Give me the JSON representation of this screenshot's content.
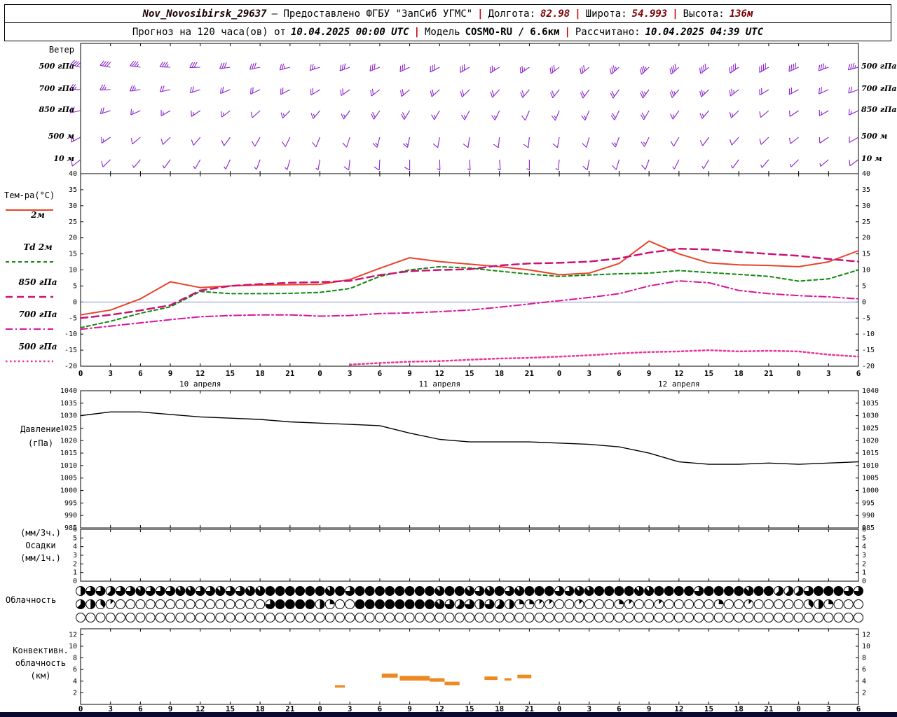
{
  "header": {
    "station": "Nov_Novosibirsk_29637",
    "provider": "— Предоставлено ФГБУ \"ЗапСиб УГМС\"",
    "sep": "|",
    "lon_label": "Долгота:",
    "lon": "82.98",
    "lat_label": "Широта:",
    "lat": "54.993",
    "alt_label": "Высота:",
    "alt": "136м",
    "forecast_label": "Прогноз на 120 часа(ов) от",
    "forecast_time": "10.04.2025 00:00 UTC",
    "model_label": "Модель",
    "model": "COSMO-RU / 6.6км",
    "calc_label": "Рассчитано:",
    "calc_time": "10.04.2025 04:39 UTC"
  },
  "labels": {
    "wind": "Ветер",
    "wind_levels": [
      "500 гПа",
      "700 гПа",
      "850 гПа",
      "500 м",
      "10 м"
    ],
    "temp_title": "Тем-ра(°C)",
    "legend": [
      "2м",
      "Td 2м",
      "850 гПа",
      "700 гПа",
      "500 гПа"
    ],
    "pressure1": "Давление",
    "pressure2": "(гПа)",
    "precip1": "(мм/3ч.)",
    "precip2": "Осадки",
    "precip3": "(мм/1ч.)",
    "cloud": "Облачность",
    "conv1": "Конвективн.",
    "conv2": "облачность",
    "conv3": "(км)"
  },
  "colors": {
    "barb": "#8822cc",
    "separator": "#cc0000",
    "zero_line": "#7788cc",
    "convective": "#ee8822",
    "bottom_bar": "#0a0a30",
    "axis": "#000000"
  },
  "axis": {
    "x_hours": [
      0,
      3,
      6,
      9,
      12,
      15,
      18,
      21,
      24,
      27,
      30,
      33,
      36,
      39,
      42,
      45,
      48,
      51,
      54,
      57,
      60,
      63,
      66,
      69,
      72,
      75,
      78
    ],
    "hour_labels": [
      "0",
      "3",
      "6",
      "9",
      "12",
      "15",
      "18",
      "21",
      "0",
      "3",
      "6",
      "9",
      "12",
      "15",
      "18",
      "21",
      "0",
      "3",
      "6",
      "9",
      "12",
      "15",
      "18",
      "21",
      "0",
      "3",
      "6"
    ],
    "date_labels": [
      {
        "text": "10 апреля",
        "hour": 12
      },
      {
        "text": "11 апреля",
        "hour": 36
      },
      {
        "text": "12 апреля",
        "hour": 60
      }
    ]
  },
  "chart_data": [
    {
      "id": "wind",
      "type": "wind-barbs",
      "title": "Ветер",
      "levels": [
        {
          "name": "500 гПа",
          "dirs": [
            285,
            280,
            278,
            272,
            268,
            262,
            258,
            255,
            252,
            250,
            248,
            245,
            242,
            240,
            238,
            235,
            232,
            230,
            228,
            226,
            228,
            232,
            236,
            240,
            246,
            250,
            255
          ],
          "speeds": [
            20,
            20,
            18,
            18,
            16,
            15,
            15,
            14,
            14,
            15,
            15,
            16,
            16,
            15,
            14,
            14,
            15,
            16,
            18,
            18,
            20,
            21,
            22,
            21,
            20,
            18,
            18
          ]
        },
        {
          "name": "700 гПа",
          "dirs": [
            272,
            268,
            262,
            258,
            252,
            248,
            245,
            242,
            238,
            235,
            232,
            230,
            228,
            225,
            222,
            220,
            218,
            216,
            215,
            216,
            220,
            226,
            232,
            238,
            242,
            246,
            250
          ],
          "speeds": [
            14,
            14,
            13,
            12,
            12,
            11,
            10,
            10,
            10,
            11,
            12,
            12,
            11,
            10,
            10,
            10,
            11,
            12,
            12,
            13,
            14,
            14,
            13,
            12,
            12,
            11,
            10
          ]
        },
        {
          "name": "850 гПа",
          "dirs": [
            258,
            252,
            246,
            240,
            236,
            232,
            228,
            224,
            220,
            216,
            214,
            212,
            210,
            208,
            205,
            203,
            202,
            203,
            206,
            210,
            215,
            220,
            226,
            230,
            236,
            240,
            245
          ],
          "speeds": [
            10,
            10,
            9,
            8,
            8,
            8,
            7,
            8,
            8,
            9,
            10,
            10,
            9,
            8,
            8,
            7,
            8,
            9,
            10,
            10,
            9,
            8,
            8,
            7,
            7,
            8,
            8
          ]
        },
        {
          "name": "500 м",
          "dirs": [
            242,
            236,
            230,
            226,
            220,
            216,
            210,
            206,
            202,
            198,
            195,
            192,
            190,
            188,
            186,
            186,
            190,
            195,
            200,
            206,
            210,
            216,
            222,
            226,
            232,
            236,
            240
          ],
          "speeds": [
            8,
            8,
            7,
            6,
            6,
            6,
            5,
            6,
            6,
            7,
            8,
            8,
            7,
            6,
            6,
            5,
            6,
            7,
            8,
            8,
            7,
            6,
            6,
            5,
            5,
            6,
            6
          ]
        },
        {
          "name": "10 м",
          "dirs": [
            232,
            226,
            220,
            216,
            210,
            205,
            200,
            196,
            190,
            186,
            183,
            180,
            178,
            176,
            175,
            180,
            186,
            190,
            196,
            200,
            206,
            210,
            216,
            220,
            226,
            230,
            234
          ],
          "speeds": [
            5,
            5,
            4,
            4,
            4,
            3,
            3,
            4,
            4,
            5,
            5,
            5,
            4,
            4,
            3,
            3,
            4,
            5,
            5,
            5,
            4,
            4,
            3,
            3,
            4,
            4,
            5
          ]
        }
      ]
    },
    {
      "id": "temperature",
      "type": "line",
      "title": "Тем-ра(°C)",
      "ylim": [
        -20,
        40
      ],
      "ytick_step": 5,
      "zero_line": true,
      "series": [
        {
          "name": "2м",
          "color": "#e8432a",
          "style": "solid",
          "width": 2,
          "values": [
            -4,
            -2.5,
            1,
            6.3,
            4.5,
            5,
            5.3,
            5.4,
            5.5,
            7,
            10.5,
            13.8,
            12.6,
            11.8,
            11,
            10,
            8.5,
            9,
            12,
            19,
            15,
            12.2,
            11.6,
            11.4,
            11,
            12.5,
            16
          ]
        },
        {
          "name": "Td 2м",
          "color": "#118811",
          "style": "dashed",
          "width": 2,
          "values": [
            -8,
            -6,
            -3.5,
            -1.5,
            3.3,
            2.6,
            2.6,
            2.7,
            3,
            4.2,
            8,
            10,
            11,
            10.6,
            9.6,
            8.7,
            8,
            8.4,
            8.8,
            9,
            9.8,
            9.2,
            8.6,
            8,
            6.5,
            7.2,
            10
          ]
        },
        {
          "name": "850 гПа",
          "color": "#cc1177",
          "style": "longdash",
          "width": 2.5,
          "values": [
            -5,
            -4,
            -2.6,
            -1,
            3.6,
            5,
            5.6,
            6,
            6.2,
            6.6,
            8.4,
            9.6,
            10,
            10.2,
            11.4,
            12,
            12.2,
            12.6,
            13.6,
            15.4,
            16.6,
            16.4,
            15.6,
            15,
            14.4,
            13.4,
            12.6
          ]
        },
        {
          "name": "700 гПа",
          "color": "#dd1199",
          "style": "dashdot",
          "width": 2,
          "values": [
            -8.5,
            -7.5,
            -6.5,
            -5.5,
            -4.6,
            -4.2,
            -4,
            -4,
            -4.4,
            -4.2,
            -3.6,
            -3.4,
            -3,
            -2.5,
            -1.6,
            -0.6,
            0.4,
            1.4,
            2.6,
            5,
            6.6,
            6,
            3.6,
            2.6,
            2,
            1.6,
            1
          ]
        },
        {
          "name": "500 гПа",
          "color": "#ee3399",
          "style": "dotted",
          "width": 2.5,
          "values": [
            null,
            null,
            null,
            null,
            null,
            null,
            null,
            null,
            null,
            -19.5,
            -19,
            -18.6,
            -18.4,
            -18,
            -17.6,
            -17.4,
            -17,
            -16.6,
            -16,
            -15.6,
            -15.4,
            -15,
            -15.4,
            -15.2,
            -15.4,
            -16.4,
            -17
          ]
        }
      ]
    },
    {
      "id": "pressure",
      "type": "line",
      "title": "Давление (гПа)",
      "ylim": [
        985,
        1040
      ],
      "ytick_step": 5,
      "series": [
        {
          "name": "Давление",
          "color": "#000000",
          "style": "solid",
          "width": 1.4,
          "values": [
            1030,
            1031.5,
            1031.5,
            1030.5,
            1029.5,
            1029,
            1028.5,
            1027.5,
            1027,
            1026.5,
            1026,
            1023,
            1020.5,
            1019.5,
            1019.5,
            1019.5,
            1019,
            1018.5,
            1017.5,
            1015,
            1011.5,
            1010.5,
            1010.5,
            1011,
            1010.5,
            1011,
            1011.5
          ]
        }
      ]
    },
    {
      "id": "precip",
      "type": "bar",
      "title": "Осадки (мм/3ч., мм/1ч.)",
      "ylim": [
        0,
        6
      ],
      "yticks": [
        0,
        1,
        2,
        3,
        4,
        5,
        6
      ],
      "values": [
        0,
        0,
        0,
        0,
        0,
        0,
        0,
        0,
        0,
        0,
        0,
        0,
        0,
        0,
        0,
        0,
        0,
        0,
        0,
        0,
        0,
        0,
        0,
        0,
        0,
        0,
        0
      ]
    },
    {
      "id": "cloud",
      "type": "cloud-rows",
      "title": "Облачность",
      "okta_max": 8,
      "rows": [
        [
          4,
          6,
          6,
          5,
          6,
          6,
          7,
          6,
          6,
          6,
          7,
          7,
          6,
          6,
          7,
          6,
          6,
          7,
          7,
          8,
          8,
          8,
          8,
          8,
          8,
          7,
          8,
          6,
          8,
          8,
          8,
          8,
          8,
          8,
          8,
          8,
          7,
          8,
          8,
          7,
          6,
          7,
          8,
          6,
          7,
          8,
          8,
          8,
          6,
          6,
          7,
          7,
          8,
          8,
          8,
          8,
          7,
          7,
          8,
          8,
          8,
          8,
          6,
          8,
          8,
          8,
          8,
          7,
          8,
          8,
          5,
          5,
          5,
          6,
          8,
          8,
          8,
          6,
          6
        ],
        [
          5,
          4,
          3,
          1,
          0,
          0,
          0,
          0,
          0,
          0,
          0,
          0,
          0,
          0,
          0,
          0,
          0,
          0,
          0,
          6,
          8,
          8,
          8,
          8,
          4,
          2,
          0,
          0,
          8,
          8,
          8,
          8,
          8,
          8,
          8,
          8,
          7,
          6,
          5,
          6,
          4,
          6,
          5,
          4,
          2,
          2,
          1,
          1,
          0,
          0,
          1,
          0,
          0,
          0,
          2,
          1,
          0,
          0,
          1,
          0,
          0,
          0,
          0,
          0,
          2,
          0,
          0,
          1,
          0,
          0,
          0,
          0,
          0,
          3,
          4,
          2,
          0,
          0,
          0
        ],
        [
          0,
          0,
          0,
          0,
          0,
          0,
          0,
          0,
          0,
          0,
          0,
          0,
          0,
          0,
          0,
          0,
          0,
          0,
          0,
          0,
          0,
          0,
          0,
          0,
          0,
          0,
          0,
          0,
          0,
          0,
          0,
          0,
          0,
          0,
          0,
          0,
          0,
          0,
          0,
          0,
          0,
          0,
          0,
          0,
          0,
          0,
          0,
          0,
          0,
          0,
          0,
          0,
          0,
          0,
          0,
          0,
          0,
          0,
          0,
          0,
          0,
          0,
          0,
          0,
          0,
          0,
          0,
          0,
          0,
          0,
          0,
          0,
          0,
          0,
          0,
          0,
          0,
          0,
          0
        ]
      ]
    },
    {
      "id": "convective",
      "type": "segments",
      "title": "Конвективн. облачность (км)",
      "ylim": [
        0,
        13
      ],
      "yticks": [
        2,
        4,
        6,
        8,
        10,
        12
      ],
      "segments": [
        {
          "h0": 25.5,
          "h1": 26.5,
          "base": 2.9,
          "top": 3.3
        },
        {
          "h0": 30.2,
          "h1": 31.8,
          "base": 4.6,
          "top": 5.3
        },
        {
          "h0": 32.0,
          "h1": 35.0,
          "base": 4.1,
          "top": 4.9
        },
        {
          "h0": 35.0,
          "h1": 36.5,
          "base": 3.9,
          "top": 4.5
        },
        {
          "h0": 36.5,
          "h1": 38.0,
          "base": 3.3,
          "top": 3.9
        },
        {
          "h0": 40.5,
          "h1": 41.8,
          "base": 4.2,
          "top": 4.8
        },
        {
          "h0": 42.5,
          "h1": 43.2,
          "base": 4.1,
          "top": 4.5
        },
        {
          "h0": 43.8,
          "h1": 45.2,
          "base": 4.5,
          "top": 5.1
        }
      ]
    }
  ]
}
